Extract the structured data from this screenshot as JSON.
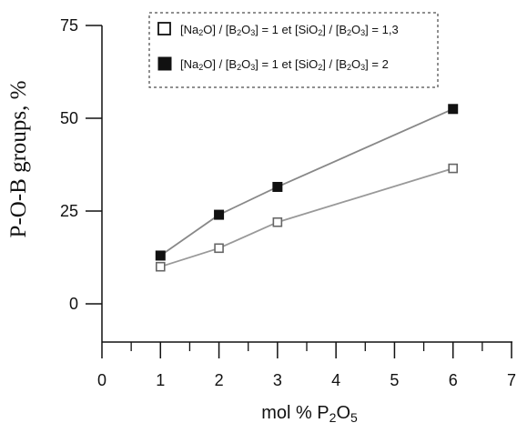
{
  "chart_data": {
    "type": "line",
    "xlabel": {
      "base": "mol % P",
      "sub": "2",
      "tail": "O",
      "sub2": "5"
    },
    "ylabel": "P-O-B groups, %",
    "xlim": [
      0,
      7
    ],
    "ylim": [
      -10,
      75
    ],
    "x_ticks": [
      0,
      1,
      2,
      3,
      4,
      5,
      6,
      7
    ],
    "x_minor_ticks": [
      0.5,
      1.5,
      2.5,
      3.5,
      4.5,
      5.5,
      6.5
    ],
    "y_ticks": [
      0,
      25,
      50,
      75
    ],
    "legend_position": "top-right",
    "legend_border": "dashed",
    "series": [
      {
        "name": "[Na2O] / [B2O3] = 1 et [SiO2] / [B2O3] = 1,3",
        "name_parts": [
          {
            "t": "[Na"
          },
          {
            "t": "2",
            "sub": true
          },
          {
            "t": "O] / [B"
          },
          {
            "t": "2",
            "sub": true
          },
          {
            "t": "O"
          },
          {
            "t": "3",
            "sub": true
          },
          {
            "t": "] = 1 et [SiO"
          },
          {
            "t": "2",
            "sub": true
          },
          {
            "t": "] / [B"
          },
          {
            "t": "2",
            "sub": true
          },
          {
            "t": "O"
          },
          {
            "t": "3",
            "sub": true
          },
          {
            "t": "] = 1,3"
          }
        ],
        "marker": "open-square",
        "color": "#777777",
        "x": [
          1,
          2,
          3,
          6
        ],
        "y": [
          10,
          15,
          22,
          36.5
        ]
      },
      {
        "name": "[Na2O] / [B2O3] = 1 et [SiO2] / [B2O3] = 2",
        "name_parts": [
          {
            "t": "[Na"
          },
          {
            "t": "2",
            "sub": true
          },
          {
            "t": "O] / [B"
          },
          {
            "t": "2",
            "sub": true
          },
          {
            "t": "O"
          },
          {
            "t": "3",
            "sub": true
          },
          {
            "t": "] = 1 et [SiO"
          },
          {
            "t": "2",
            "sub": true
          },
          {
            "t": "] / [B"
          },
          {
            "t": "2",
            "sub": true
          },
          {
            "t": "O"
          },
          {
            "t": "3",
            "sub": true
          },
          {
            "t": "] = 2"
          }
        ],
        "marker": "filled-square",
        "color": "#111111",
        "x": [
          1,
          2,
          3,
          6
        ],
        "y": [
          13,
          24,
          31.5,
          52.5
        ]
      }
    ]
  }
}
